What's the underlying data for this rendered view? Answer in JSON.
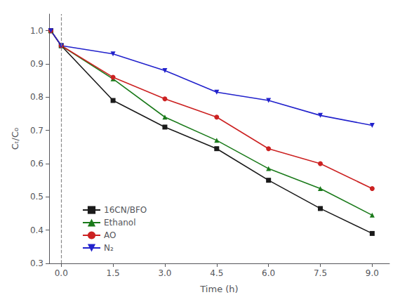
{
  "chart_data": {
    "type": "line",
    "xlabel": "Time (h)",
    "ylabel": "Cₜ/C₀",
    "x": [
      -0.3,
      0.0,
      1.5,
      3.0,
      4.5,
      6.0,
      7.5,
      9.0
    ],
    "xlim": [
      -0.35,
      9.5
    ],
    "xticks": [
      {
        "value": 0.0,
        "label": "0.0"
      },
      1.5,
      {
        "value": 3.0,
        "label": "3.0"
      },
      4.5,
      {
        "value": 6.0,
        "label": "6.0"
      },
      7.5,
      {
        "value": 9.0,
        "label": "9.0"
      }
    ],
    "ylim": [
      0.3,
      1.05
    ],
    "yticks": [
      0.3,
      0.4,
      0.5,
      0.6,
      0.7,
      0.8,
      0.9,
      {
        "value": 1.0,
        "label": "1.0"
      }
    ],
    "grid": false,
    "legend": "lower left",
    "vline": {
      "x": 0.0,
      "line_style": "dashed",
      "color": "#888888"
    },
    "series": [
      {
        "name": "16CN/BFO",
        "color": "#1a1a1a",
        "marker": "square",
        "values": [
          1.0,
          0.955,
          0.79,
          0.71,
          0.645,
          0.55,
          0.465,
          0.39
        ]
      },
      {
        "name": "Ethanol",
        "color": "#1a7a1a",
        "marker": "triangle-up",
        "values": [
          1.0,
          0.955,
          0.855,
          0.74,
          0.67,
          0.585,
          0.525,
          0.445
        ]
      },
      {
        "name": "AO",
        "color": "#cc2222",
        "marker": "circle",
        "values": [
          1.0,
          0.955,
          0.86,
          0.795,
          0.74,
          0.645,
          0.6,
          0.525
        ]
      },
      {
        "name": "N₂",
        "color": "#2222cc",
        "marker": "triangle-down",
        "values": [
          1.0,
          0.955,
          0.93,
          0.88,
          0.815,
          0.79,
          0.745,
          0.715
        ]
      }
    ]
  }
}
